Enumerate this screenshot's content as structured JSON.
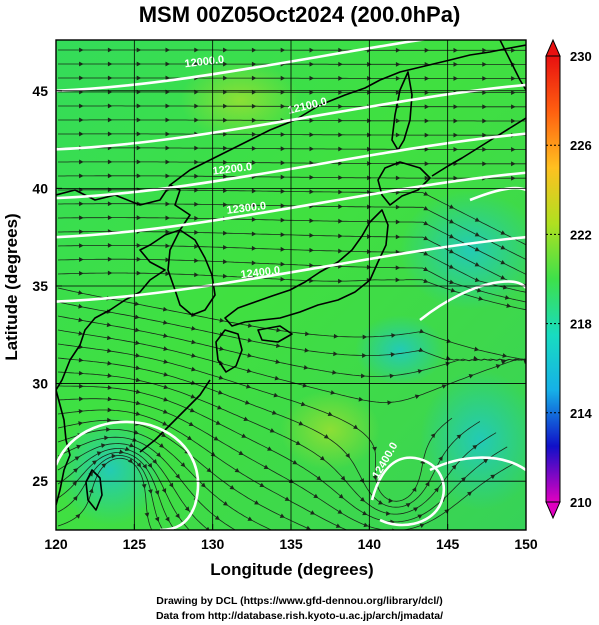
{
  "title": "MSM 00Z05Oct2024 (200.0hPa)",
  "credits": {
    "line1": "Drawing by DCL (https://www.gfd-dennou.org/library/dcl/)",
    "line2": "Data from http://database.rish.kyoto-u.ac.jp/arch/jmadata/"
  },
  "map": {
    "xlabel": "Longitude (degrees)",
    "ylabel": "Latitude  (degrees)",
    "lon_range": [
      120,
      150
    ],
    "lat_range": [
      22.5,
      47.6
    ],
    "lon_ticks": [
      120,
      125,
      130,
      135,
      140,
      145,
      150
    ],
    "lat_ticks": [
      25,
      30,
      35,
      40,
      45
    ],
    "grid": true,
    "contours": [
      {
        "label": "12000.0",
        "lat": 46.4
      },
      {
        "label": "12100.0",
        "lat": 43.4
      },
      {
        "label": "12200.0",
        "lat": 40.9
      },
      {
        "label": "12300.0",
        "lat": 38.9
      },
      {
        "label": "12400.0",
        "lat": 35.6
      },
      {
        "label": "12400.0",
        "lat": 25.5
      }
    ],
    "colors": {
      "field_main": "#3ee04a",
      "field_alt": "#27c85a",
      "coast": "#000000",
      "contour": "#ffffff"
    }
  },
  "colorbar": {
    "min": 210,
    "max": 230,
    "tick_labels": [
      "230",
      "226",
      "222",
      "218",
      "214",
      "210"
    ],
    "stops": [
      "#e000c0",
      "#1010c8",
      "#16b0e8",
      "#18dcc0",
      "#3ee04a",
      "#b0e020",
      "#ffc020",
      "#ff6010",
      "#e81010"
    ]
  }
}
